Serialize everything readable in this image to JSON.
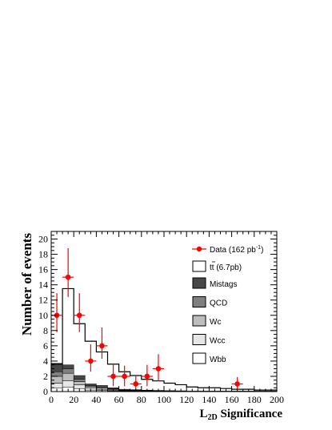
{
  "chart_data": {
    "type": "bar",
    "xlabel_main": "L",
    "xlabel_sub": "2D",
    "xlabel_rest": " Significance",
    "ylabel": "Number of events",
    "xlim": [
      0,
      200
    ],
    "ylim": [
      0,
      21
    ],
    "x_ticks": [
      "0",
      "20",
      "40",
      "60",
      "80",
      "100",
      "120",
      "140",
      "160",
      "180",
      "200"
    ],
    "y_ticks": [
      "0",
      "2",
      "4",
      "6",
      "8",
      "10",
      "12",
      "14",
      "16",
      "18",
      "20"
    ],
    "bin_edges": [
      0,
      10,
      20,
      30,
      40,
      50,
      60,
      70,
      80,
      90,
      100,
      110,
      120,
      130,
      140,
      150,
      160,
      170,
      180,
      190,
      200
    ],
    "series": [
      {
        "name": "Wbb",
        "color": "#ffffff",
        "values": [
          0.5,
          0.6,
          0.4,
          0.2,
          0.15,
          0.1,
          0.05,
          0.05,
          0.05,
          0.03,
          0.02,
          0.02,
          0.01,
          0.01,
          0.01,
          0.01,
          0.01,
          0.01,
          0.01,
          0.01
        ]
      },
      {
        "name": "Wcc",
        "color": "#e6e6e6",
        "values": [
          0.6,
          0.8,
          0.5,
          0.25,
          0.15,
          0.1,
          0.05,
          0.05,
          0.04,
          0.03,
          0.02,
          0.02,
          0.01,
          0.01,
          0.01,
          0.01,
          0.01,
          0.01,
          0.01,
          0.01
        ]
      },
      {
        "name": "Wc",
        "color": "#bdbdbd",
        "values": [
          0.9,
          1.0,
          0.4,
          0.2,
          0.15,
          0.1,
          0.05,
          0.04,
          0.03,
          0.02,
          0.02,
          0.02,
          0.01,
          0.01,
          0.01,
          0.01,
          0.01,
          0.01,
          0.01,
          0.01
        ]
      },
      {
        "name": "QCD",
        "color": "#808080",
        "values": [
          0.6,
          0.6,
          0.3,
          0.15,
          0.15,
          0.05,
          0.05,
          0.03,
          0.02,
          0.02,
          0.02,
          0.01,
          0.01,
          0.01,
          0.01,
          0.01,
          0.01,
          0.01,
          0.01,
          0.01
        ]
      },
      {
        "name": "Mistags",
        "color": "#474747",
        "values": [
          1.1,
          0.5,
          0.5,
          0.2,
          0.2,
          0.15,
          0.1,
          0.08,
          0.05,
          0.05,
          0.04,
          0.03,
          0.02,
          0.02,
          0.02,
          0.02,
          0.02,
          0.02,
          0.02,
          0.02
        ]
      }
    ],
    "signal": {
      "name_main": "t",
      "name_over": "t",
      "name_rest": " (6.7pb)",
      "totals": [
        3.6,
        13.5,
        8.9,
        6.6,
        5.2,
        3.6,
        2.6,
        2.1,
        1.6,
        1.4,
        1.1,
        0.9,
        0.6,
        0.5,
        0.5,
        0.4,
        0.3,
        0.3,
        0.2,
        0.2
      ]
    },
    "data": {
      "name": "Data (162 pb",
      "name_sup": "-1",
      "name_close": ")",
      "color": "#ff0000",
      "points": [
        {
          "x": 5,
          "y": 10,
          "err": [
            2.2,
            2.9
          ]
        },
        {
          "x": 15,
          "y": 15,
          "err": [
            2.6,
            3.8
          ]
        },
        {
          "x": 25,
          "y": 10,
          "err": [
            2.2,
            2.9
          ]
        },
        {
          "x": 35,
          "y": 4,
          "err": [
            1.4,
            2.2
          ]
        },
        {
          "x": 45,
          "y": 6,
          "err": [
            1.7,
            2.4
          ]
        },
        {
          "x": 55,
          "y": 2,
          "err": [
            1.3,
            1.7
          ]
        },
        {
          "x": 65,
          "y": 2,
          "err": [
            1.3,
            1.4
          ]
        },
        {
          "x": 75,
          "y": 1,
          "err": [
            0.8,
            1.0
          ]
        },
        {
          "x": 85,
          "y": 2,
          "err": [
            1.3,
            1.5
          ]
        },
        {
          "x": 95,
          "y": 3,
          "err": [
            1.6,
            1.9
          ]
        },
        {
          "x": 165,
          "y": 1,
          "err": [
            0.8,
            0.9
          ]
        }
      ]
    },
    "legend_position": "right"
  }
}
